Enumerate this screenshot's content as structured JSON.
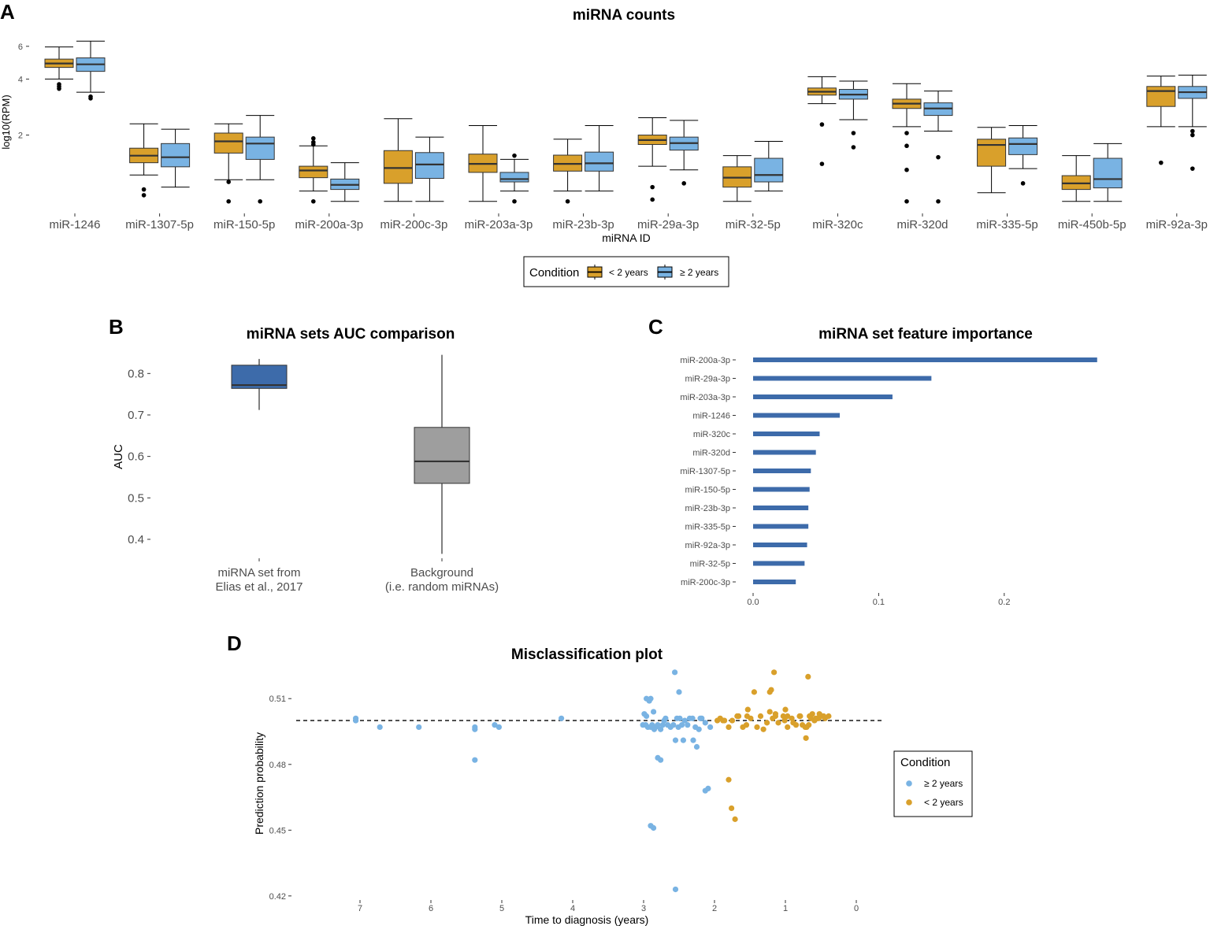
{
  "colors": {
    "under2": "#D9A02B",
    "over2": "#79B3E3",
    "auc_set": "#3D6BAA",
    "auc_bg": "#9E9E9E",
    "bar": "#3D6BAA",
    "median": "#333333"
  },
  "chart_data": [
    {
      "panel": "A",
      "type": "box",
      "title": "miRNA counts",
      "xlabel": "miRNA ID",
      "ylabel": "log10(RPM)",
      "scale": "log",
      "yticks": [
        2,
        4,
        6
      ],
      "ylim": [
        0.82,
        7.0
      ],
      "legend": {
        "title": "Condition",
        "labels": [
          "< 2 years",
          "≥ 2 years"
        ],
        "position": "bottom"
      },
      "categories": [
        "miR-1246",
        "miR-1307-5p",
        "miR-150-5p",
        "miR-200a-3p",
        "miR-200c-3p",
        "miR-203a-3p",
        "miR-23b-3p",
        "miR-29a-3p",
        "miR-32-5p",
        "miR-320c",
        "miR-320d",
        "miR-335-5p",
        "miR-450b-5p",
        "miR-92a-3p"
      ],
      "series": [
        {
          "name": "< 2 years",
          "boxes": [
            {
              "min": 4.0,
              "q1": 4.62,
              "median": 4.85,
              "q3": 5.12,
              "max": 5.95,
              "outliers": [
                3.55,
                3.65,
                3.75
              ]
            },
            {
              "min": 1.22,
              "q1": 1.42,
              "median": 1.55,
              "q3": 1.7,
              "max": 2.3,
              "outliers": [
                1.02,
                0.95
              ]
            },
            {
              "min": 1.15,
              "q1": 1.6,
              "median": 1.85,
              "q3": 2.05,
              "max": 2.3,
              "outliers": [
                1.12,
                0.88
              ]
            },
            {
              "min": 1.0,
              "q1": 1.18,
              "median": 1.29,
              "q3": 1.36,
              "max": 1.75,
              "outliers": [
                1.92,
                1.83,
                1.78,
                0.88
              ]
            },
            {
              "min": 0.88,
              "q1": 1.1,
              "median": 1.33,
              "q3": 1.65,
              "max": 2.45,
              "outliers": []
            },
            {
              "min": 0.88,
              "q1": 1.26,
              "median": 1.4,
              "q3": 1.58,
              "max": 2.25,
              "outliers": []
            },
            {
              "min": 1.0,
              "q1": 1.28,
              "median": 1.4,
              "q3": 1.56,
              "max": 1.9,
              "outliers": [
                0.88
              ]
            },
            {
              "min": 1.36,
              "q1": 1.78,
              "median": 1.88,
              "q3": 2.0,
              "max": 2.48,
              "outliers": [
                1.05,
                0.9
              ]
            },
            {
              "min": 0.88,
              "q1": 1.05,
              "median": 1.18,
              "q3": 1.35,
              "max": 1.55,
              "outliers": []
            },
            {
              "min": 2.95,
              "q1": 3.28,
              "median": 3.42,
              "q3": 3.58,
              "max": 4.12,
              "outliers": [
                2.28,
                1.4
              ]
            },
            {
              "min": 2.22,
              "q1": 2.78,
              "median": 2.95,
              "q3": 3.12,
              "max": 3.78,
              "outliers": [
                2.05,
                1.75,
                1.3,
                0.88
              ]
            },
            {
              "min": 0.98,
              "q1": 1.36,
              "median": 1.77,
              "q3": 1.9,
              "max": 2.2,
              "outliers": []
            },
            {
              "min": 0.88,
              "q1": 1.02,
              "median": 1.1,
              "q3": 1.21,
              "max": 1.55,
              "outliers": []
            },
            {
              "min": 2.22,
              "q1": 2.85,
              "median": 3.45,
              "q3": 3.65,
              "max": 4.15,
              "outliers": [
                1.42
              ]
            }
          ]
        },
        {
          "name": "≥ 2 years",
          "boxes": [
            {
              "min": 3.4,
              "q1": 4.4,
              "median": 4.8,
              "q3": 5.2,
              "max": 6.4,
              "outliers": [
                3.22,
                3.15
              ]
            },
            {
              "min": 1.05,
              "q1": 1.35,
              "median": 1.52,
              "q3": 1.8,
              "max": 2.15,
              "outliers": []
            },
            {
              "min": 1.15,
              "q1": 1.48,
              "median": 1.8,
              "q3": 1.95,
              "max": 2.55,
              "outliers": [
                0.88
              ]
            },
            {
              "min": 0.88,
              "q1": 1.02,
              "median": 1.08,
              "q3": 1.16,
              "max": 1.42,
              "outliers": []
            },
            {
              "min": 0.88,
              "q1": 1.17,
              "median": 1.39,
              "q3": 1.61,
              "max": 1.95,
              "outliers": []
            },
            {
              "min": 1.0,
              "q1": 1.12,
              "median": 1.16,
              "q3": 1.26,
              "max": 1.48,
              "outliers": [
                1.55,
                0.88
              ]
            },
            {
              "min": 1.0,
              "q1": 1.28,
              "median": 1.41,
              "q3": 1.62,
              "max": 2.25,
              "outliers": []
            },
            {
              "min": 1.3,
              "q1": 1.66,
              "median": 1.81,
              "q3": 1.95,
              "max": 2.4,
              "outliers": [
                1.1
              ]
            },
            {
              "min": 1.0,
              "q1": 1.12,
              "median": 1.22,
              "q3": 1.5,
              "max": 1.85,
              "outliers": []
            },
            {
              "min": 2.42,
              "q1": 3.12,
              "median": 3.3,
              "q3": 3.52,
              "max": 3.9,
              "outliers": [
                2.05,
                1.72
              ]
            },
            {
              "min": 2.1,
              "q1": 2.55,
              "median": 2.78,
              "q3": 2.98,
              "max": 3.45,
              "outliers": [
                1.52,
                0.88
              ]
            },
            {
              "min": 1.32,
              "q1": 1.57,
              "median": 1.79,
              "q3": 1.93,
              "max": 2.25,
              "outliers": [
                1.1
              ]
            },
            {
              "min": 0.88,
              "q1": 1.04,
              "median": 1.16,
              "q3": 1.5,
              "max": 1.8,
              "outliers": []
            },
            {
              "min": 2.22,
              "q1": 3.15,
              "median": 3.4,
              "q3": 3.65,
              "max": 4.2,
              "outliers": [
                2.1,
                2.0,
                1.32
              ]
            }
          ]
        }
      ]
    },
    {
      "panel": "B",
      "type": "box",
      "title": "miRNA sets AUC comparison",
      "xlabel": "",
      "ylabel": "AUC",
      "ylim": [
        0.36,
        0.85
      ],
      "yticks": [
        "0.4",
        "0.5",
        "0.6",
        "0.7",
        "0.8"
      ],
      "categories": [
        [
          "miRNA set from",
          "Elias et al., 2017"
        ],
        [
          "Background",
          "(i.e. random miRNAs)"
        ]
      ],
      "boxes": [
        {
          "min": 0.712,
          "q1": 0.764,
          "median": 0.772,
          "q3": 0.82,
          "max": 0.835
        },
        {
          "min": 0.365,
          "q1": 0.535,
          "median": 0.588,
          "q3": 0.67,
          "max": 0.845
        }
      ]
    },
    {
      "panel": "C",
      "type": "bar",
      "orientation": "horizontal",
      "title": "miRNA set feature importance",
      "xlabel": "",
      "ylabel": "",
      "xlim": [
        0,
        0.275
      ],
      "xticks": [
        "0.0",
        "0.1",
        "0.2"
      ],
      "categories": [
        "miR-200a-3p",
        "miR-29a-3p",
        "miR-203a-3p",
        "miR-1246",
        "miR-320c",
        "miR-320d",
        "miR-1307-5p",
        "miR-150-5p",
        "miR-23b-3p",
        "miR-335-5p",
        "miR-92a-3p",
        "miR-32-5p",
        "miR-200c-3p"
      ],
      "values": [
        0.274,
        0.142,
        0.111,
        0.069,
        0.053,
        0.05,
        0.046,
        0.045,
        0.044,
        0.044,
        0.043,
        0.041,
        0.034
      ]
    },
    {
      "panel": "D",
      "type": "scatter",
      "title": "Misclassification plot",
      "xlabel": "Time to diagnosis (years)",
      "ylabel": "Prediction probability",
      "xlim": [
        7.9,
        -0.4
      ],
      "ylim": [
        0.4185,
        0.5205
      ],
      "xticks": [
        "7",
        "6",
        "5",
        "4",
        "3",
        "2",
        "1",
        "0"
      ],
      "yticks": [
        "0.42",
        "0.45",
        "0.48",
        "0.51"
      ],
      "threshold": 0.5,
      "legend": {
        "title": "Condition",
        "labels": [
          "≥ 2 years",
          "< 2 years"
        ],
        "position": "right"
      },
      "series": [
        {
          "name": "≥ 2 years",
          "x": [
            7.06,
            7.06,
            6.72,
            6.17,
            5.38,
            5.38,
            5.38,
            5.1,
            5.04,
            4.16,
            3.01,
            2.97,
            2.94,
            2.9,
            2.88,
            2.85,
            2.83,
            2.8,
            2.76,
            2.73,
            2.71,
            2.69,
            2.66,
            2.62,
            2.58,
            2.55,
            2.53,
            2.51,
            2.49,
            2.46,
            2.42,
            2.38,
            2.35,
            2.31,
            2.27,
            2.22,
            2.18,
            2.13,
            2.09,
            2.06,
            2.96,
            2.99,
            2.92,
            2.86,
            2.96,
            2.9,
            2.8,
            2.76,
            2.5,
            2.44,
            2.56,
            2.25,
            2.13,
            2.9,
            2.86,
            2.55,
            2.3,
            2.2
          ],
          "y": [
            0.501,
            0.5,
            0.497,
            0.497,
            0.497,
            0.496,
            0.482,
            0.498,
            0.497,
            0.501,
            0.498,
            0.498,
            0.497,
            0.497,
            0.498,
            0.496,
            0.497,
            0.498,
            0.496,
            0.498,
            0.5,
            0.501,
            0.498,
            0.497,
            0.498,
            0.491,
            0.501,
            0.497,
            0.501,
            0.498,
            0.5,
            0.498,
            0.501,
            0.501,
            0.497,
            0.496,
            0.501,
            0.468,
            0.469,
            0.497,
            0.502,
            0.503,
            0.509,
            0.504,
            0.51,
            0.51,
            0.483,
            0.482,
            0.513,
            0.491,
            0.522,
            0.488,
            0.499,
            0.452,
            0.451,
            0.423,
            0.491,
            0.501
          ]
        },
        {
          "name": "< 2 years",
          "x": [
            1.86,
            1.8,
            1.75,
            1.66,
            1.6,
            1.55,
            1.49,
            1.4,
            1.35,
            1.26,
            1.18,
            1.1,
            1.03,
            0.97,
            0.91,
            0.85,
            0.79,
            0.72,
            0.66,
            0.59,
            0.55,
            0.49,
            0.44,
            0.39,
            1.92,
            1.68,
            1.53,
            1.22,
            1.14,
            1.0,
            0.8,
            0.7,
            0.64,
            0.52,
            0.46,
            1.31,
            1.14,
            0.97,
            0.89,
            0.76,
            0.62,
            1.44,
            1.22,
            1.01,
            0.67,
            0.57,
            1.2,
            0.68,
            0.53,
            1.96,
            1.88,
            1.8,
            1.76,
            1.71,
            1.54,
            1.16,
            0.71
          ],
          "y": [
            0.5,
            0.497,
            0.5,
            0.502,
            0.497,
            0.498,
            0.501,
            0.497,
            0.502,
            0.499,
            0.501,
            0.499,
            0.502,
            0.497,
            0.501,
            0.498,
            0.502,
            0.497,
            0.502,
            0.5,
            0.501,
            0.502,
            0.501,
            0.502,
            0.501,
            0.502,
            0.505,
            0.504,
            0.502,
            0.505,
            0.502,
            0.497,
            0.501,
            0.503,
            0.502,
            0.496,
            0.503,
            0.502,
            0.499,
            0.498,
            0.503,
            0.513,
            0.513,
            0.5,
            0.498,
            0.501,
            0.514,
            0.52,
            0.501,
            0.5,
            0.5,
            0.473,
            0.46,
            0.455,
            0.502,
            0.522,
            0.492
          ]
        }
      ]
    }
  ],
  "panels": {
    "a": {
      "letter": "A",
      "title": "miRNA counts",
      "xlabel": "miRNA ID",
      "ylabel": "log10(RPM)",
      "yticks": [
        "2",
        "4",
        "6"
      ],
      "legend_title": "Condition",
      "legend_1": "< 2 years",
      "legend_2": "≥ 2 years"
    },
    "b": {
      "letter": "B",
      "title": "miRNA sets AUC comparison",
      "ylabel": "AUC"
    },
    "c": {
      "letter": "C",
      "title": "miRNA set feature importance"
    },
    "d": {
      "letter": "D",
      "title": "Misclassification plot",
      "xlabel": "Time to diagnosis (years)",
      "ylabel": "Prediction probability",
      "legend_title": "Condition",
      "legend_1": "≥ 2 years",
      "legend_2": "< 2 years"
    }
  }
}
